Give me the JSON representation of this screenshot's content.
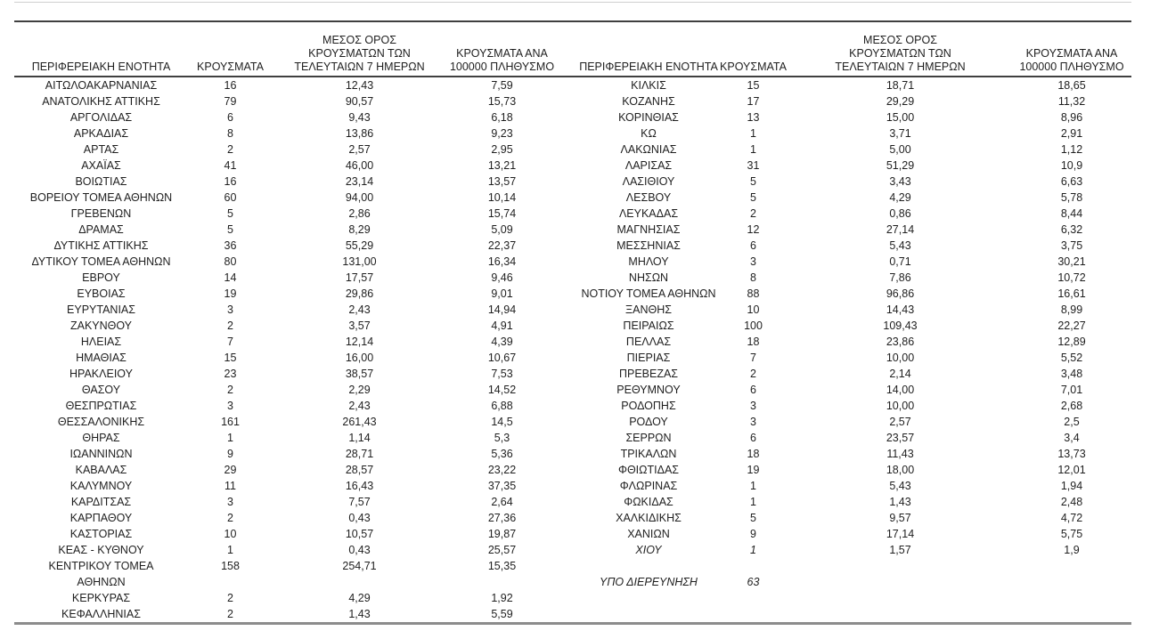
{
  "table": {
    "headers": {
      "region": "ΠΕΡΙΦΕΡΕΙΑΚΗ ΕΝΟΤΗΤΑ",
      "cases": "ΚΡΟΥΣΜΑΤΑ",
      "avg7": "ΜΕΣΟΣ ΟΡΟΣ\nΚΡΟΥΣΜΑΤΩΝ ΤΩΝ\nΤΕΛΕΥΤΑΙΩΝ 7 ΗΜΕΡΩΝ",
      "per100k": "ΚΡΟΥΣΜΑΤΑ ΑΝΑ\n100000 ΠΛΗΘΥΣΜΟ"
    },
    "left_rows": [
      {
        "name": "ΑΙΤΩΛΟΑΚΑΡΝΑΝΙΑΣ",
        "cases": "16",
        "avg7": "12,43",
        "per100k": "7,59"
      },
      {
        "name": "ΑΝΑΤΟΛΙΚΗΣ ΑΤΤΙΚΗΣ",
        "cases": "79",
        "avg7": "90,57",
        "per100k": "15,73"
      },
      {
        "name": "ΑΡΓΟΛΙΔΑΣ",
        "cases": "6",
        "avg7": "9,43",
        "per100k": "6,18"
      },
      {
        "name": "ΑΡΚΑΔΙΑΣ",
        "cases": "8",
        "avg7": "13,86",
        "per100k": "9,23"
      },
      {
        "name": "ΑΡΤΑΣ",
        "cases": "2",
        "avg7": "2,57",
        "per100k": "2,95"
      },
      {
        "name": "ΑΧΑΪΑΣ",
        "cases": "41",
        "avg7": "46,00",
        "per100k": "13,21"
      },
      {
        "name": "ΒΟΙΩΤΙΑΣ",
        "cases": "16",
        "avg7": "23,14",
        "per100k": "13,57"
      },
      {
        "name": "ΒΟΡΕΙΟΥ ΤΟΜΕΑ ΑΘΗΝΩΝ",
        "cases": "60",
        "avg7": "94,00",
        "per100k": "10,14"
      },
      {
        "name": "ΓΡΕΒΕΝΩΝ",
        "cases": "5",
        "avg7": "2,86",
        "per100k": "15,74"
      },
      {
        "name": "ΔΡΑΜΑΣ",
        "cases": "5",
        "avg7": "8,29",
        "per100k": "5,09"
      },
      {
        "name": "ΔΥΤΙΚΗΣ ΑΤΤΙΚΗΣ",
        "cases": "36",
        "avg7": "55,29",
        "per100k": "22,37"
      },
      {
        "name": "ΔΥΤΙΚΟΥ ΤΟΜΕΑ ΑΘΗΝΩΝ",
        "cases": "80",
        "avg7": "131,00",
        "per100k": "16,34"
      },
      {
        "name": "ΕΒΡΟΥ",
        "cases": "14",
        "avg7": "17,57",
        "per100k": "9,46"
      },
      {
        "name": "ΕΥΒΟΙΑΣ",
        "cases": "19",
        "avg7": "29,86",
        "per100k": "9,01"
      },
      {
        "name": "ΕΥΡΥΤΑΝΙΑΣ",
        "cases": "3",
        "avg7": "2,43",
        "per100k": "14,94"
      },
      {
        "name": "ΖΑΚΥΝΘΟΥ",
        "cases": "2",
        "avg7": "3,57",
        "per100k": "4,91"
      },
      {
        "name": "ΗΛΕΙΑΣ",
        "cases": "7",
        "avg7": "12,14",
        "per100k": "4,39"
      },
      {
        "name": "ΗΜΑΘΙΑΣ",
        "cases": "15",
        "avg7": "16,00",
        "per100k": "10,67"
      },
      {
        "name": "ΗΡΑΚΛΕΙΟΥ",
        "cases": "23",
        "avg7": "38,57",
        "per100k": "7,53"
      },
      {
        "name": "ΘΑΣΟΥ",
        "cases": "2",
        "avg7": "2,29",
        "per100k": "14,52"
      },
      {
        "name": "ΘΕΣΠΡΩΤΙΑΣ",
        "cases": "3",
        "avg7": "2,43",
        "per100k": "6,88"
      },
      {
        "name": "ΘΕΣΣΑΛΟΝΙΚΗΣ",
        "cases": "161",
        "avg7": "261,43",
        "per100k": "14,5"
      },
      {
        "name": "ΘΗΡΑΣ",
        "cases": "1",
        "avg7": "1,14",
        "per100k": "5,3"
      },
      {
        "name": "ΙΩΑΝΝΙΝΩΝ",
        "cases": "9",
        "avg7": "28,71",
        "per100k": "5,36"
      },
      {
        "name": "ΚΑΒΑΛΑΣ",
        "cases": "29",
        "avg7": "28,57",
        "per100k": "23,22"
      },
      {
        "name": "ΚΑΛΥΜΝΟΥ",
        "cases": "11",
        "avg7": "16,43",
        "per100k": "37,35"
      },
      {
        "name": "ΚΑΡΔΙΤΣΑΣ",
        "cases": "3",
        "avg7": "7,57",
        "per100k": "2,64"
      },
      {
        "name": "ΚΑΡΠΑΘΟΥ",
        "cases": "2",
        "avg7": "0,43",
        "per100k": "27,36"
      },
      {
        "name": "ΚΑΣΤΟΡΙΑΣ",
        "cases": "10",
        "avg7": "10,57",
        "per100k": "19,87"
      },
      {
        "name": "ΚΕΑΣ - ΚΥΘΝΟΥ",
        "cases": "1",
        "avg7": "0,43",
        "per100k": "25,57"
      },
      {
        "name": "ΚΕΝΤΡΙΚΟΥ ΤΟΜΕΑ\nΑΘΗΝΩΝ",
        "cases": "158",
        "avg7": "254,71",
        "per100k": "15,35"
      },
      {
        "name": "ΚΕΡΚΥΡΑΣ",
        "cases": "2",
        "avg7": "4,29",
        "per100k": "1,92"
      },
      {
        "name": "ΚΕΦΑΛΛΗΝΙΑΣ",
        "cases": "2",
        "avg7": "1,43",
        "per100k": "5,59"
      }
    ],
    "right_rows": [
      {
        "name": "ΚΙΛΚΙΣ",
        "cases": "15",
        "avg7": "18,71",
        "per100k": "18,65"
      },
      {
        "name": "ΚΟΖΑΝΗΣ",
        "cases": "17",
        "avg7": "29,29",
        "per100k": "11,32"
      },
      {
        "name": "ΚΟΡΙΝΘΙΑΣ",
        "cases": "13",
        "avg7": "15,00",
        "per100k": "8,96"
      },
      {
        "name": "ΚΩ",
        "cases": "1",
        "avg7": "3,71",
        "per100k": "2,91"
      },
      {
        "name": "ΛΑΚΩΝΙΑΣ",
        "cases": "1",
        "avg7": "5,00",
        "per100k": "1,12"
      },
      {
        "name": "ΛΑΡΙΣΑΣ",
        "cases": "31",
        "avg7": "51,29",
        "per100k": "10,9"
      },
      {
        "name": "ΛΑΣΙΘΙΟΥ",
        "cases": "5",
        "avg7": "3,43",
        "per100k": "6,63"
      },
      {
        "name": "ΛΕΣΒΟΥ",
        "cases": "5",
        "avg7": "4,29",
        "per100k": "5,78"
      },
      {
        "name": "ΛΕΥΚΑΔΑΣ",
        "cases": "2",
        "avg7": "0,86",
        "per100k": "8,44"
      },
      {
        "name": "ΜΑΓΝΗΣΙΑΣ",
        "cases": "12",
        "avg7": "27,14",
        "per100k": "6,32"
      },
      {
        "name": "ΜΕΣΣΗΝΙΑΣ",
        "cases": "6",
        "avg7": "5,43",
        "per100k": "3,75"
      },
      {
        "name": "ΜΗΛΟΥ",
        "cases": "3",
        "avg7": "0,71",
        "per100k": "30,21"
      },
      {
        "name": "ΝΗΣΩΝ",
        "cases": "8",
        "avg7": "7,86",
        "per100k": "10,72"
      },
      {
        "name": "ΝΟΤΙΟΥ ΤΟΜΕΑ ΑΘΗΝΩΝ",
        "cases": "88",
        "avg7": "96,86",
        "per100k": "16,61"
      },
      {
        "name": "ΞΑΝΘΗΣ",
        "cases": "10",
        "avg7": "14,43",
        "per100k": "8,99"
      },
      {
        "name": "ΠΕΙΡΑΙΩΣ",
        "cases": "100",
        "avg7": "109,43",
        "per100k": "22,27"
      },
      {
        "name": "ΠΕΛΛΑΣ",
        "cases": "18",
        "avg7": "23,86",
        "per100k": "12,89"
      },
      {
        "name": "ΠΙΕΡΙΑΣ",
        "cases": "7",
        "avg7": "10,00",
        "per100k": "5,52"
      },
      {
        "name": "ΠΡΕΒΕΖΑΣ",
        "cases": "2",
        "avg7": "2,14",
        "per100k": "3,48"
      },
      {
        "name": "ΡΕΘΥΜΝΟΥ",
        "cases": "6",
        "avg7": "14,00",
        "per100k": "7,01"
      },
      {
        "name": "ΡΟΔΟΠΗΣ",
        "cases": "3",
        "avg7": "10,00",
        "per100k": "2,68"
      },
      {
        "name": "ΡΟΔΟΥ",
        "cases": "3",
        "avg7": "2,57",
        "per100k": "2,5"
      },
      {
        "name": "ΣΕΡΡΩΝ",
        "cases": "6",
        "avg7": "23,57",
        "per100k": "3,4"
      },
      {
        "name": "ΤΡΙΚΑΛΩΝ",
        "cases": "18",
        "avg7": "11,43",
        "per100k": "13,73"
      },
      {
        "name": "ΦΘΙΩΤΙΔΑΣ",
        "cases": "19",
        "avg7": "18,00",
        "per100k": "12,01"
      },
      {
        "name": "ΦΛΩΡΙΝΑΣ",
        "cases": "1",
        "avg7": "5,43",
        "per100k": "1,94"
      },
      {
        "name": "ΦΩΚΙΔΑΣ",
        "cases": "1",
        "avg7": "1,43",
        "per100k": "2,48"
      },
      {
        "name": "ΧΑΛΚΙΔΙΚΗΣ",
        "cases": "5",
        "avg7": "9,57",
        "per100k": "4,72"
      },
      {
        "name": "ΧΑΝΙΩΝ",
        "cases": "9",
        "avg7": "17,14",
        "per100k": "5,75"
      },
      {
        "name": "ΧΙΟΥ",
        "cases": "1",
        "avg7": "1,57",
        "per100k": "1,9",
        "italic": true
      },
      {
        "name": "",
        "cases": "",
        "avg7": "",
        "per100k": ""
      },
      {
        "name": "ΥΠΟ ΔΙΕΡΕΥΝΗΣΗ",
        "cases": "63",
        "avg7": "",
        "per100k": "",
        "italic": true
      }
    ]
  },
  "colors": {
    "text": "#1f1f1f",
    "rule_dark": "#404040",
    "rule_light": "#cfcfcf",
    "rule_bottom": "#8c8c8c"
  }
}
